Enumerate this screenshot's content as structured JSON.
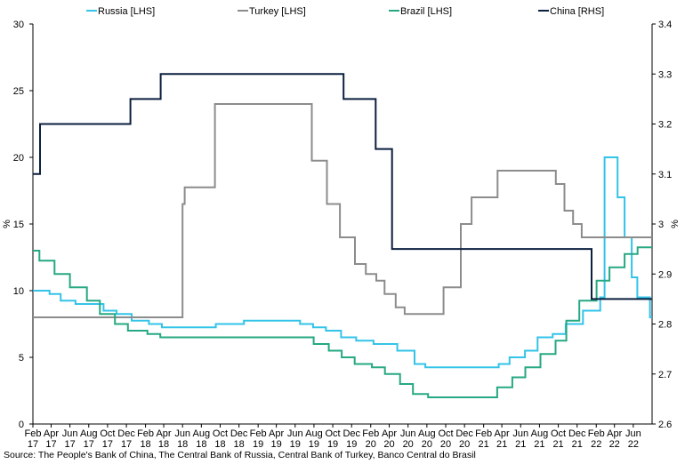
{
  "chart_data": {
    "type": "line",
    "title": "",
    "ylabel_left": "%",
    "ylabel_right": "%",
    "ylim_left": [
      0,
      30
    ],
    "ylim_right": [
      2.6,
      3.4
    ],
    "yticks_left": [
      "0",
      "5",
      "10",
      "15",
      "20",
      "25",
      "30"
    ],
    "yticks_right": [
      "2.6",
      "2.7",
      "2.8",
      "2.9",
      "3",
      "3.1",
      "3.2",
      "3.3",
      "3.4"
    ],
    "xlim": [
      "2017-02-01",
      "2022-08-01"
    ],
    "xticks": [
      {
        "month": "Feb",
        "year": "17",
        "date": "2017-02-01"
      },
      {
        "month": "Apr",
        "year": "17",
        "date": "2017-04-01"
      },
      {
        "month": "Jun",
        "year": "17",
        "date": "2017-06-01"
      },
      {
        "month": "Aug",
        "year": "17",
        "date": "2017-08-01"
      },
      {
        "month": "Oct",
        "year": "17",
        "date": "2017-10-01"
      },
      {
        "month": "Dec",
        "year": "17",
        "date": "2017-12-01"
      },
      {
        "month": "Feb",
        "year": "18",
        "date": "2018-02-01"
      },
      {
        "month": "Apr",
        "year": "18",
        "date": "2018-04-01"
      },
      {
        "month": "Jun",
        "year": "18",
        "date": "2018-06-01"
      },
      {
        "month": "Aug",
        "year": "18",
        "date": "2018-08-01"
      },
      {
        "month": "Oct",
        "year": "18",
        "date": "2018-10-01"
      },
      {
        "month": "Dec",
        "year": "18",
        "date": "2018-12-01"
      },
      {
        "month": "Feb",
        "year": "19",
        "date": "2019-02-01"
      },
      {
        "month": "Apr",
        "year": "19",
        "date": "2019-04-01"
      },
      {
        "month": "Jun",
        "year": "19",
        "date": "2019-06-01"
      },
      {
        "month": "Aug",
        "year": "19",
        "date": "2019-08-01"
      },
      {
        "month": "Oct",
        "year": "19",
        "date": "2019-10-01"
      },
      {
        "month": "Dec",
        "year": "19",
        "date": "2019-12-01"
      },
      {
        "month": "Feb",
        "year": "20",
        "date": "2020-02-01"
      },
      {
        "month": "Apr",
        "year": "20",
        "date": "2020-04-01"
      },
      {
        "month": "Jun",
        "year": "20",
        "date": "2020-06-01"
      },
      {
        "month": "Aug",
        "year": "20",
        "date": "2020-08-01"
      },
      {
        "month": "Oct",
        "year": "20",
        "date": "2020-10-01"
      },
      {
        "month": "Dec",
        "year": "20",
        "date": "2020-12-01"
      },
      {
        "month": "Feb",
        "year": "21",
        "date": "2021-02-01"
      },
      {
        "month": "Apr",
        "year": "21",
        "date": "2021-04-01"
      },
      {
        "month": "Jun",
        "year": "21",
        "date": "2021-06-01"
      },
      {
        "month": "Aug",
        "year": "21",
        "date": "2021-08-01"
      },
      {
        "month": "Oct",
        "year": "21",
        "date": "2021-10-01"
      },
      {
        "month": "Dec",
        "year": "21",
        "date": "2021-12-01"
      },
      {
        "month": "Feb",
        "year": "22",
        "date": "2022-02-01"
      },
      {
        "month": "Apr",
        "year": "22",
        "date": "2022-04-01"
      },
      {
        "month": "Jun",
        "year": "22",
        "date": "2022-06-01"
      }
    ],
    "grid": false,
    "legend_position": "top",
    "series": [
      {
        "name": "Russia [LHS]",
        "axis": "left",
        "color": "#33c3e8",
        "step": true,
        "points": [
          [
            "2017-02-01",
            10.0
          ],
          [
            "2017-03-27",
            9.75
          ],
          [
            "2017-05-02",
            9.25
          ],
          [
            "2017-06-19",
            9.0
          ],
          [
            "2017-09-18",
            8.5
          ],
          [
            "2017-10-30",
            8.25
          ],
          [
            "2017-12-18",
            7.75
          ],
          [
            "2018-02-12",
            7.5
          ],
          [
            "2018-03-26",
            7.25
          ],
          [
            "2018-09-17",
            7.5
          ],
          [
            "2018-12-17",
            7.75
          ],
          [
            "2019-06-17",
            7.5
          ],
          [
            "2019-07-29",
            7.25
          ],
          [
            "2019-09-09",
            7.0
          ],
          [
            "2019-10-28",
            6.5
          ],
          [
            "2019-12-16",
            6.25
          ],
          [
            "2020-02-10",
            6.0
          ],
          [
            "2020-04-27",
            5.5
          ],
          [
            "2020-06-22",
            4.5
          ],
          [
            "2020-07-27",
            4.25
          ],
          [
            "2021-03-22",
            4.5
          ],
          [
            "2021-04-26",
            5.0
          ],
          [
            "2021-06-15",
            5.5
          ],
          [
            "2021-07-26",
            6.5
          ],
          [
            "2021-09-13",
            6.75
          ],
          [
            "2021-10-25",
            7.5
          ],
          [
            "2021-12-20",
            8.5
          ],
          [
            "2022-02-14",
            9.5
          ],
          [
            "2022-02-28",
            20.0
          ],
          [
            "2022-04-11",
            17.0
          ],
          [
            "2022-05-04",
            14.0
          ],
          [
            "2022-05-27",
            11.0
          ],
          [
            "2022-06-14",
            9.5
          ],
          [
            "2022-07-25",
            8.0
          ],
          [
            "2022-08-01",
            8.0
          ]
        ]
      },
      {
        "name": "Turkey [LHS]",
        "axis": "left",
        "color": "#8c8c8c",
        "step": true,
        "points": [
          [
            "2017-02-01",
            8.0
          ],
          [
            "2018-06-01",
            16.5
          ],
          [
            "2018-06-08",
            17.75
          ],
          [
            "2018-09-14",
            24.0
          ],
          [
            "2019-07-25",
            19.75
          ],
          [
            "2019-09-12",
            16.5
          ],
          [
            "2019-10-24",
            14.0
          ],
          [
            "2019-12-12",
            12.0
          ],
          [
            "2020-01-16",
            11.25
          ],
          [
            "2020-02-19",
            10.75
          ],
          [
            "2020-03-17",
            9.75
          ],
          [
            "2020-04-22",
            8.75
          ],
          [
            "2020-05-21",
            8.25
          ],
          [
            "2020-09-24",
            10.25
          ],
          [
            "2020-11-19",
            15.0
          ],
          [
            "2020-12-24",
            17.0
          ],
          [
            "2021-03-18",
            19.0
          ],
          [
            "2021-09-23",
            18.0
          ],
          [
            "2021-10-21",
            16.0
          ],
          [
            "2021-11-18",
            15.0
          ],
          [
            "2021-12-16",
            14.0
          ],
          [
            "2022-08-01",
            14.0
          ]
        ]
      },
      {
        "name": "Brazil [LHS]",
        "axis": "left",
        "color": "#26a882",
        "step": true,
        "points": [
          [
            "2017-02-01",
            13.0
          ],
          [
            "2017-02-22",
            12.25
          ],
          [
            "2017-04-12",
            11.25
          ],
          [
            "2017-06-01",
            10.25
          ],
          [
            "2017-07-26",
            9.25
          ],
          [
            "2017-09-06",
            8.25
          ],
          [
            "2017-10-25",
            7.5
          ],
          [
            "2017-12-06",
            7.0
          ],
          [
            "2018-02-07",
            6.75
          ],
          [
            "2018-03-21",
            6.5
          ],
          [
            "2019-07-31",
            6.0
          ],
          [
            "2019-09-18",
            5.5
          ],
          [
            "2019-10-30",
            5.0
          ],
          [
            "2019-12-11",
            4.5
          ],
          [
            "2020-02-05",
            4.25
          ],
          [
            "2020-03-18",
            3.75
          ],
          [
            "2020-05-06",
            3.0
          ],
          [
            "2020-06-17",
            2.25
          ],
          [
            "2020-08-05",
            2.0
          ],
          [
            "2021-03-17",
            2.75
          ],
          [
            "2021-05-05",
            3.5
          ],
          [
            "2021-06-16",
            4.25
          ],
          [
            "2021-08-04",
            5.25
          ],
          [
            "2021-09-22",
            6.25
          ],
          [
            "2021-10-27",
            7.75
          ],
          [
            "2021-12-08",
            9.25
          ],
          [
            "2022-02-02",
            10.75
          ],
          [
            "2022-03-16",
            11.75
          ],
          [
            "2022-05-04",
            12.75
          ],
          [
            "2022-06-15",
            13.25
          ],
          [
            "2022-08-01",
            13.25
          ]
        ]
      },
      {
        "name": "China [RHS]",
        "axis": "right",
        "color": "#0b1f3f",
        "step": true,
        "points": [
          [
            "2017-02-01",
            3.1
          ],
          [
            "2017-02-24",
            3.2
          ],
          [
            "2017-12-14",
            3.25
          ],
          [
            "2018-03-22",
            3.3
          ],
          [
            "2019-11-05",
            3.25
          ],
          [
            "2020-02-17",
            3.15
          ],
          [
            "2020-04-10",
            2.95
          ],
          [
            "2022-01-17",
            2.85
          ],
          [
            "2022-08-01",
            2.85
          ]
        ]
      }
    ]
  },
  "source_text": "Source: The People's Bank of China, The Central Bank of Russia, Central Bank of Turkey, Banco Central do Brasil"
}
